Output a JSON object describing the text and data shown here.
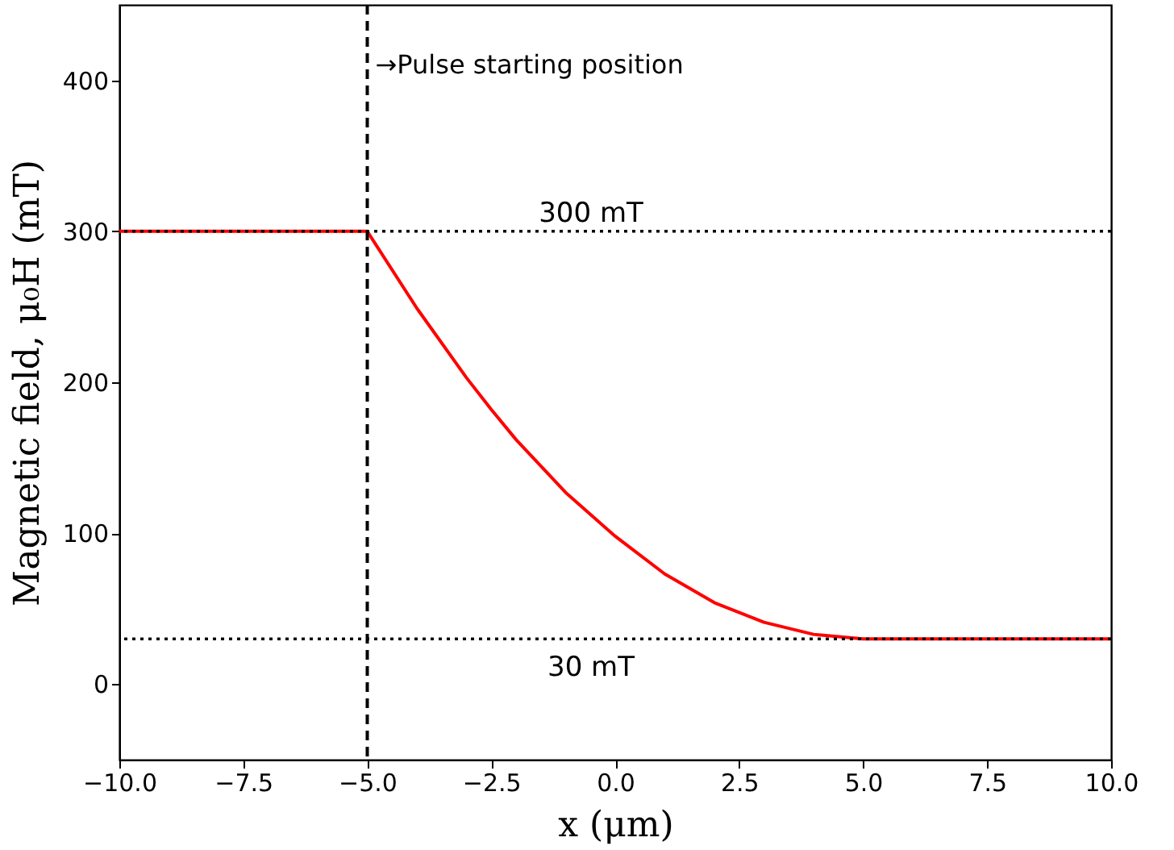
{
  "chart_data": {
    "type": "line",
    "xlabel": "x (μm)",
    "ylabel": "Magnetic field, μ₀H (mT)",
    "x": [
      -10,
      -5,
      -4,
      -3,
      -2.5,
      -2,
      -1,
      0,
      1,
      2,
      3,
      4,
      5,
      10
    ],
    "series": [
      {
        "color": "#ff0000",
        "values": [
          300,
          300,
          249,
          203,
          182,
          162,
          127,
          98,
          73,
          54,
          41,
          33,
          30,
          30
        ]
      }
    ],
    "xlim": [
      -10,
      10
    ],
    "ylim": [
      -50,
      450
    ],
    "xticks": [
      {
        "value": -10,
        "label": "−10.0"
      },
      {
        "value": -7.5,
        "label": "−7.5"
      },
      {
        "value": -5,
        "label": "−5.0"
      },
      {
        "value": -2.5,
        "label": "−2.5"
      },
      {
        "value": 0,
        "label": "0.0"
      },
      {
        "value": 2.5,
        "label": "2.5"
      },
      {
        "value": 5,
        "label": "5.0"
      },
      {
        "value": 7.5,
        "label": "7.5"
      },
      {
        "value": 10,
        "label": "10.0"
      }
    ],
    "yticks": [
      0,
      100,
      200,
      300,
      400
    ],
    "ref_lines": [
      {
        "axis": "x",
        "value": -5,
        "line_style": "dashed",
        "color": "#000000"
      },
      {
        "axis": "y",
        "value": 300,
        "label": "300 mT",
        "line_style": "dotted",
        "color": "#000000"
      },
      {
        "axis": "y",
        "value": 30,
        "label": "30 mT",
        "line_style": "dotted",
        "color": "#000000"
      }
    ],
    "annotations": [
      {
        "text": "→Pulse starting position",
        "x": -5,
        "y": 410
      }
    ],
    "grid": false,
    "marker": "none",
    "line_style": "solid"
  }
}
